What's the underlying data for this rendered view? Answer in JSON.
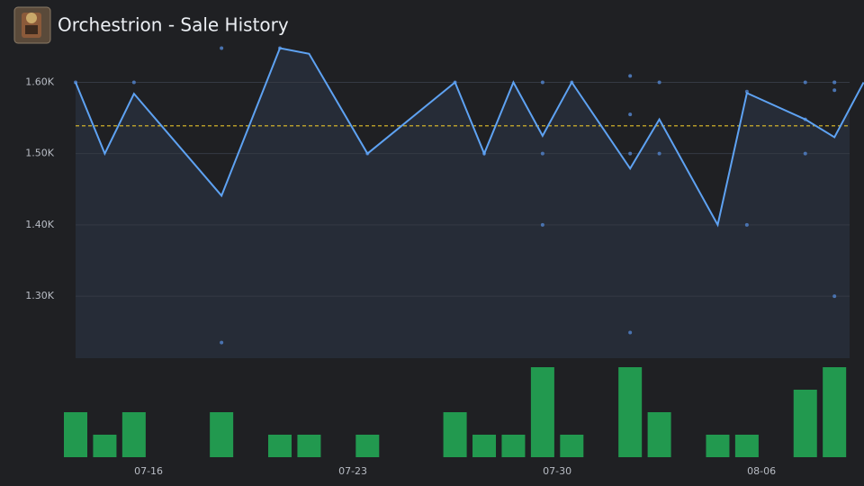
{
  "chart_data": {
    "type": "line",
    "title": "Orchestrion - Sale History",
    "x": [
      "07-13",
      "07-14",
      "07-15",
      "07-18",
      "07-20",
      "07-21",
      "07-23",
      "07-26",
      "07-27",
      "07-28",
      "07-29",
      "07-30",
      "08-01",
      "08-02",
      "08-04",
      "08-05",
      "08-07",
      "08-08",
      "08-09"
    ],
    "values": [
      1600,
      1500,
      1584,
      1441,
      1648,
      1640,
      1500,
      1600,
      1500,
      1600,
      1525,
      1600,
      1479,
      1548,
      1400,
      1585,
      1548,
      1523,
      1600
    ],
    "color": "#5ea2f2",
    "scatter": {
      "x": [
        "07-13",
        "07-15",
        "07-18",
        "07-18",
        "07-20",
        "07-23",
        "07-26",
        "07-27",
        "07-29",
        "07-29",
        "07-29",
        "07-30",
        "08-01",
        "08-01",
        "08-01",
        "08-01",
        "08-02",
        "08-02",
        "08-05",
        "08-05",
        "08-07",
        "08-07",
        "08-07",
        "08-08",
        "08-08",
        "08-08",
        "08-08"
      ],
      "values": [
        1600,
        1600,
        1648,
        1235,
        1648,
        1500,
        1600,
        1500,
        1500,
        1600,
        1400,
        1600,
        1555,
        1500,
        1249,
        1609,
        1600,
        1500,
        1400,
        1587,
        1600,
        1548,
        1500,
        1600,
        1300,
        1600,
        1589
      ],
      "color": "#4a73b0"
    },
    "average": {
      "value": 1539,
      "color": "#e3c12a"
    },
    "volume": {
      "x": [
        "07-13",
        "07-14",
        "07-15",
        "07-18",
        "07-20",
        "07-21",
        "07-23",
        "07-26",
        "07-27",
        "07-28",
        "07-29",
        "07-30",
        "08-01",
        "08-02",
        "08-04",
        "08-05",
        "08-07",
        "08-08"
      ],
      "values": [
        2,
        1,
        2,
        2,
        1,
        1,
        1,
        2,
        1,
        1,
        4,
        1,
        4,
        2,
        1,
        1,
        3,
        4
      ],
      "color": "#22994f",
      "ylim": [
        0,
        4
      ]
    },
    "ylim": [
      1213,
      1665
    ],
    "yticks": [
      {
        "value": 1300,
        "label": "1.30K"
      },
      {
        "value": 1400,
        "label": "1.40K"
      },
      {
        "value": 1500,
        "label": "1.50K"
      },
      {
        "value": 1600,
        "label": "1.60K"
      }
    ],
    "xticks": [
      "07-16",
      "07-23",
      "07-30",
      "08-06"
    ],
    "grid": true
  }
}
